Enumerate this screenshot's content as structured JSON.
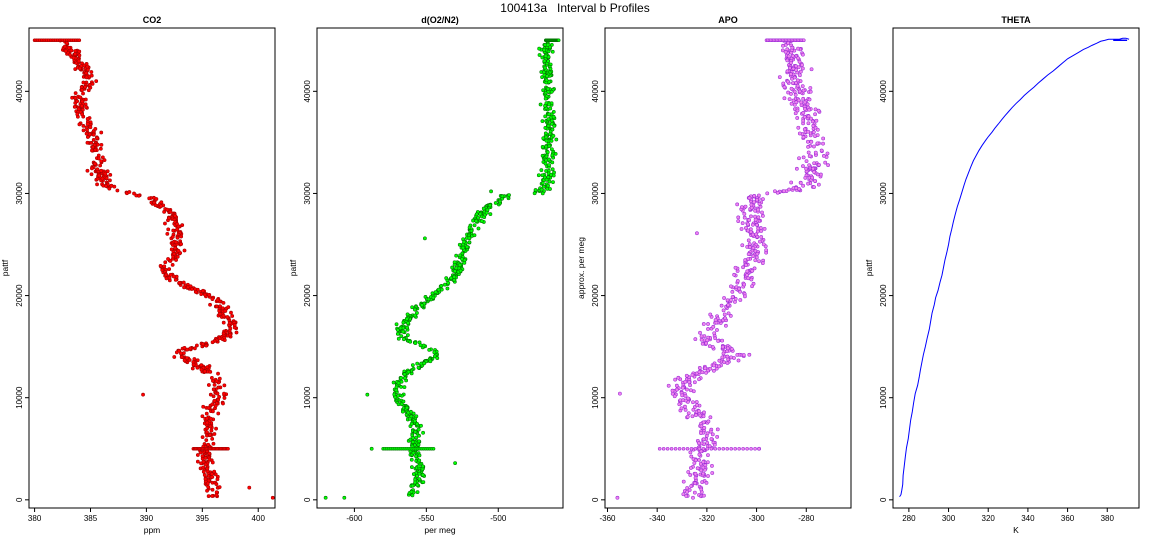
{
  "title": "100413a   Interval b Profiles",
  "chart_data": [
    {
      "type": "scatter",
      "title": "CO2",
      "xlabel": "ppm",
      "ylabel": "pattf",
      "xlim": [
        379.5,
        401.5
      ],
      "ylim": [
        -800,
        46200
      ],
      "xticks": [
        380,
        385,
        390,
        395,
        400
      ],
      "yticks": [
        0,
        10000,
        20000,
        30000,
        40000
      ],
      "marker_color": "#ff0000",
      "edge_color": "#a00000",
      "profile": [
        [
          382.3,
          45000
        ],
        [
          383.2,
          44000
        ],
        [
          384.2,
          42500
        ],
        [
          384.8,
          41000
        ],
        [
          383.9,
          39500
        ],
        [
          384.2,
          38000
        ],
        [
          384.6,
          36800
        ],
        [
          385.3,
          35300
        ],
        [
          385.7,
          34000
        ],
        [
          385.6,
          32300
        ],
        [
          386.5,
          30600
        ],
        [
          387.8,
          30200
        ],
        [
          389.9,
          29700
        ],
        [
          391.2,
          28800
        ],
        [
          392.4,
          27900
        ],
        [
          392.7,
          26200
        ],
        [
          392.6,
          24700
        ],
        [
          392.7,
          23800
        ],
        [
          391.4,
          22700
        ],
        [
          392.3,
          21600
        ],
        [
          393.4,
          20900
        ],
        [
          395.0,
          20300
        ],
        [
          396.3,
          19400
        ],
        [
          397.1,
          18100
        ],
        [
          397.8,
          16800
        ],
        [
          396.9,
          15700
        ],
        [
          394.1,
          14900
        ],
        [
          392.5,
          14300
        ],
        [
          394.6,
          13300
        ],
        [
          395.7,
          12200
        ],
        [
          396.4,
          11100
        ],
        [
          396.6,
          10100
        ],
        [
          395.9,
          9100
        ],
        [
          395.4,
          8000
        ],
        [
          396.0,
          6900
        ],
        [
          395.4,
          5900
        ],
        [
          395.3,
          4900
        ],
        [
          395.3,
          3900
        ],
        [
          395.5,
          2900
        ],
        [
          395.7,
          1800
        ],
        [
          395.8,
          900
        ],
        [
          395.9,
          200
        ]
      ],
      "spread": 0.7,
      "outliers": [
        [
          401.3,
          200
        ],
        [
          399.2,
          1200
        ],
        [
          389.7,
          10300
        ]
      ],
      "segments": [
        [
          380.0,
          45000,
          384.0,
          45000
        ],
        [
          394.2,
          5000,
          397.3,
          5000
        ]
      ]
    },
    {
      "type": "scatter",
      "title": "d(O2/N2)",
      "xlabel": "per meg",
      "ylabel": "pattf",
      "xlim": [
        -626,
        -455
      ],
      "ylim": [
        -800,
        46200
      ],
      "xticks": [
        -600,
        -550,
        -500
      ],
      "yticks": [
        0,
        10000,
        20000,
        30000,
        40000
      ],
      "marker_color": "#00ff00",
      "edge_color": "#007000",
      "profile": [
        [
          -466,
          45000
        ],
        [
          -467,
          43500
        ],
        [
          -466,
          42200
        ],
        [
          -465,
          40500
        ],
        [
          -466,
          39000
        ],
        [
          -465,
          37600
        ],
        [
          -464,
          36000
        ],
        [
          -465,
          34500
        ],
        [
          -465,
          33000
        ],
        [
          -466,
          31600
        ],
        [
          -467,
          30500
        ],
        [
          -472,
          30000
        ],
        [
          -493,
          29900
        ],
        [
          -498,
          29400
        ],
        [
          -505,
          28800
        ],
        [
          -512,
          27900
        ],
        [
          -516,
          27000
        ],
        [
          -520,
          25900
        ],
        [
          -524,
          24800
        ],
        [
          -526,
          23900
        ],
        [
          -528,
          23000
        ],
        [
          -530,
          22100
        ],
        [
          -535,
          21200
        ],
        [
          -542,
          20300
        ],
        [
          -550,
          19400
        ],
        [
          -557,
          18600
        ],
        [
          -563,
          17700
        ],
        [
          -567,
          17000
        ],
        [
          -568,
          16300
        ],
        [
          -566,
          15800
        ],
        [
          -554,
          15200
        ],
        [
          -545,
          14600
        ],
        [
          -541,
          14100
        ],
        [
          -552,
          13400
        ],
        [
          -560,
          12700
        ],
        [
          -567,
          12000
        ],
        [
          -570,
          11200
        ],
        [
          -571,
          10400
        ],
        [
          -568,
          9600
        ],
        [
          -564,
          8900
        ],
        [
          -560,
          8100
        ],
        [
          -557,
          7200
        ],
        [
          -557,
          6300
        ],
        [
          -559,
          5500
        ],
        [
          -559,
          5000
        ],
        [
          -557,
          4300
        ],
        [
          -556,
          3500
        ],
        [
          -555,
          2800
        ],
        [
          -556,
          2000
        ],
        [
          -558,
          1200
        ],
        [
          -560,
          400
        ]
      ],
      "spread": 4,
      "outliers": [
        [
          -620,
          200
        ],
        [
          -607,
          200
        ],
        [
          -591,
          10300
        ],
        [
          -551,
          25600
        ],
        [
          -530,
          3600
        ],
        [
          -588,
          5000
        ],
        [
          -505,
          30200
        ]
      ],
      "segments": [
        [
          -467,
          45000,
          -458,
          45000
        ],
        [
          -580,
          5000,
          -545,
          5000
        ]
      ]
    },
    {
      "type": "scatter",
      "title": "APO",
      "xlabel": "",
      "ylabel": "approx. per meg",
      "xlim": [
        -361,
        -262
      ],
      "ylim": [
        -800,
        46200
      ],
      "xticks": [
        -360,
        -340,
        -320,
        -300,
        -280
      ],
      "yticks": [
        0,
        10000,
        20000,
        30000,
        40000
      ],
      "marker_color": "#ee82ee",
      "edge_color": "#9a2bd6",
      "profile": [
        [
          -288,
          45000
        ],
        [
          -287,
          43800
        ],
        [
          -285,
          42400
        ],
        [
          -285,
          41000
        ],
        [
          -283,
          39500
        ],
        [
          -281,
          38000
        ],
        [
          -279,
          36600
        ],
        [
          -277,
          35100
        ],
        [
          -276,
          33700
        ],
        [
          -277,
          32300
        ],
        [
          -279,
          31000
        ],
        [
          -282,
          30400
        ],
        [
          -301,
          29800
        ],
        [
          -302,
          29000
        ],
        [
          -303,
          28000
        ],
        [
          -302,
          27000
        ],
        [
          -301,
          26000
        ],
        [
          -300,
          25000
        ],
        [
          -301,
          24000
        ],
        [
          -302,
          23000
        ],
        [
          -304,
          22000
        ],
        [
          -306,
          21100
        ],
        [
          -308,
          20200
        ],
        [
          -310,
          19300
        ],
        [
          -313,
          18400
        ],
        [
          -316,
          17500
        ],
        [
          -319,
          16600
        ],
        [
          -321,
          15900
        ],
        [
          -318,
          15300
        ],
        [
          -312,
          14700
        ],
        [
          -308,
          14200
        ],
        [
          -314,
          13400
        ],
        [
          -321,
          12600
        ],
        [
          -327,
          11900
        ],
        [
          -330,
          11100
        ],
        [
          -330,
          10200
        ],
        [
          -328,
          9400
        ],
        [
          -325,
          8600
        ],
        [
          -322,
          7800
        ],
        [
          -320,
          7000
        ],
        [
          -320,
          6200
        ],
        [
          -320,
          5400
        ],
        [
          -321,
          4700
        ],
        [
          -322,
          4000
        ],
        [
          -322,
          3200
        ],
        [
          -322,
          2400
        ],
        [
          -323,
          1600
        ],
        [
          -324,
          800
        ],
        [
          -325,
          200
        ]
      ],
      "spread": 5,
      "outliers": [
        [
          -355,
          10400
        ],
        [
          -356,
          200
        ],
        [
          -324,
          26100
        ],
        [
          -299,
          5000
        ]
      ],
      "segments": [
        [
          -296,
          45000,
          -281,
          45000
        ],
        [
          -339,
          5000,
          -299,
          5000
        ]
      ]
    },
    {
      "type": "line",
      "title": "THETA",
      "xlabel": "K",
      "ylabel": "pattf",
      "xlim": [
        272,
        396
      ],
      "ylim": [
        -800,
        46200
      ],
      "xticks": [
        280,
        300,
        320,
        340,
        360,
        380
      ],
      "yticks": [
        0,
        10000,
        20000,
        30000,
        40000
      ],
      "line_color": "#0000ff",
      "x": [
        275.3,
        276.0,
        276.4,
        276.9,
        277.1,
        277.6,
        278.2,
        278.8,
        279.7,
        280.3,
        280.9,
        281.7,
        282.4,
        283.2,
        284.4,
        285.2,
        285.8,
        286.6,
        287.3,
        288.3,
        289.3,
        290.3,
        291.0,
        291.7,
        292.8,
        293.5,
        294.7,
        295.7,
        296.7,
        297.5,
        298.2,
        299.1,
        300.0,
        300.7,
        301.6,
        302.4,
        303.3,
        304.4,
        305.6,
        306.7,
        307.8,
        308.8,
        310.0,
        311.2,
        312.5,
        313.9,
        315.3,
        316.9,
        318.7,
        320.2,
        321.9,
        323.4,
        325.1,
        326.7,
        328.4,
        330.2,
        332.0,
        334.0,
        336.2,
        338.2,
        340.5,
        343.0,
        345.2,
        347.6,
        350.0,
        352.8,
        355.2,
        357.6,
        360.1,
        362.8,
        365.4,
        368.0,
        370.3,
        372.3,
        374.6,
        376.7,
        378.9,
        380.7,
        382.6,
        384.4,
        386.1,
        387.8,
        389.4,
        391.0
      ],
      "y": [
        300,
        500,
        900,
        1500,
        2400,
        3200,
        4200,
        5100,
        6000,
        6900,
        7800,
        8600,
        9500,
        10400,
        11200,
        12000,
        12700,
        13500,
        14200,
        15000,
        15900,
        16700,
        17500,
        18300,
        19100,
        19800,
        20500,
        21300,
        22000,
        22800,
        23500,
        24200,
        25000,
        25800,
        26500,
        27200,
        27900,
        28700,
        29400,
        30100,
        30800,
        31400,
        32000,
        32600,
        33200,
        33700,
        34200,
        34700,
        35200,
        35600,
        36000,
        36400,
        36800,
        37200,
        37600,
        38000,
        38400,
        38800,
        39200,
        39600,
        40000,
        40400,
        40800,
        41200,
        41600,
        42000,
        42400,
        42800,
        43200,
        43500,
        43800,
        44100,
        44300,
        44500,
        44700,
        44900,
        45000,
        45100,
        45100,
        45100,
        45100,
        45200,
        45200,
        45100
      ],
      "segments": [
        [
          383,
          45000,
          390,
          45000
        ]
      ]
    }
  ]
}
